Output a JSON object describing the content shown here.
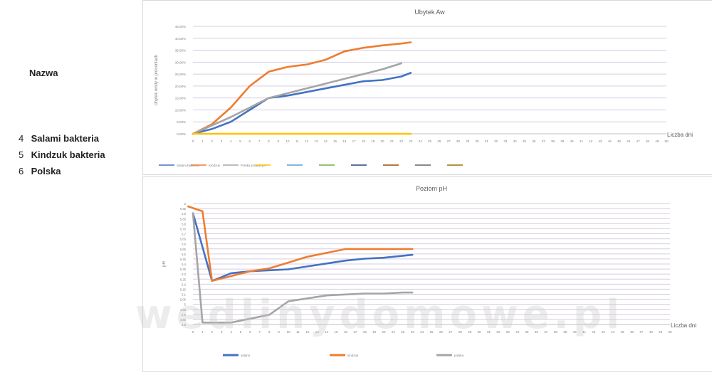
{
  "sidebar": {
    "title": "Nazwa",
    "items": [
      {
        "num": "4",
        "label": "Salami bakteria"
      },
      {
        "num": "5",
        "label": "Kindzuk bakteria"
      },
      {
        "num": "6",
        "label": "Polska"
      }
    ]
  },
  "watermark": "wedlinydomowe.pl",
  "chart_data": [
    {
      "type": "line",
      "title": "Ubytek Aw",
      "xlabel": "Liczba dni",
      "ylabel": "Ubytek wody w procentach",
      "x": [
        "0",
        "1",
        "2",
        "3",
        "4",
        "5",
        "6",
        "7",
        "8",
        "9",
        "10",
        "11",
        "12",
        "13",
        "14",
        "15",
        "16",
        "17",
        "18",
        "19",
        "20",
        "21",
        "22",
        "23",
        "24",
        "25",
        "26",
        "27",
        "28",
        "29",
        "30",
        "31",
        "32",
        "33",
        "34",
        "35",
        "36",
        "37",
        "38",
        "39",
        "40",
        "41",
        "42",
        "43",
        "44",
        "45",
        "46",
        "47",
        "48",
        "49",
        "50"
      ],
      "ylim": [
        0,
        45
      ],
      "yticks": [
        "0,00%",
        "5,00%",
        "10,00%",
        "15,00%",
        "20,00%",
        "25,00%",
        "30,00%",
        "35,00%",
        "40,00%",
        "45,00%"
      ],
      "series": [
        {
          "name": "Salami bakteria",
          "color": "#4472c4",
          "points": [
            [
              0,
              0
            ],
            [
              2,
              2
            ],
            [
              4,
              5
            ],
            [
              6,
              10
            ],
            [
              8,
              15
            ],
            [
              10,
              16
            ],
            [
              12,
              17.5
            ],
            [
              14,
              19
            ],
            [
              16,
              20.5
            ],
            [
              18,
              22
            ],
            [
              20,
              22.5
            ],
            [
              22,
              24
            ],
            [
              23,
              25.5
            ]
          ]
        },
        {
          "name": "Kindzuk",
          "color": "#ed7d31",
          "points": [
            [
              0,
              0
            ],
            [
              2,
              4
            ],
            [
              4,
              11
            ],
            [
              6,
              20
            ],
            [
              8,
              26
            ],
            [
              10,
              28
            ],
            [
              12,
              29
            ],
            [
              14,
              31
            ],
            [
              16,
              34.5
            ],
            [
              18,
              36
            ],
            [
              20,
              37
            ],
            [
              22,
              37.8
            ],
            [
              23,
              38.3
            ]
          ]
        },
        {
          "name": "Polska (szara)",
          "color": "#a5a5a5",
          "points": [
            [
              0,
              0
            ],
            [
              2,
              3.5
            ],
            [
              4,
              7
            ],
            [
              6,
              11
            ],
            [
              8,
              15
            ],
            [
              10,
              17
            ],
            [
              12,
              19
            ],
            [
              14,
              21
            ],
            [
              16,
              23
            ],
            [
              18,
              25
            ],
            [
              20,
              27
            ],
            [
              22,
              29.5
            ]
          ]
        },
        {
          "name": "",
          "color": "#ffc000",
          "points": [
            [
              0,
              0
            ],
            [
              23,
              0
            ]
          ]
        }
      ],
      "legend": [
        {
          "label": "Salami bakteria",
          "color": "#4472c4"
        },
        {
          "label": "Kindzuk",
          "color": "#ed7d31"
        },
        {
          "label": "Polska (szara) pH",
          "color": "#a5a5a5"
        },
        {
          "label": "",
          "color": "#ffc000"
        },
        {
          "label": "",
          "color": "#5b9bd5"
        },
        {
          "label": "",
          "color": "#70ad47"
        },
        {
          "label": "",
          "color": "#264478"
        },
        {
          "label": "",
          "color": "#9e480e"
        },
        {
          "label": "",
          "color": "#636363"
        },
        {
          "label": "",
          "color": "#997300"
        }
      ]
    },
    {
      "type": "line",
      "title": "Poziom pH",
      "xlabel": "Liczba dni",
      "ylabel": "pH",
      "x": [
        "0",
        "1",
        "2",
        "3",
        "4",
        "5",
        "6",
        "7",
        "8",
        "9",
        "10",
        "11",
        "12",
        "13",
        "14",
        "15",
        "16",
        "17",
        "18",
        "19",
        "20",
        "21",
        "22",
        "23",
        "24",
        "25",
        "26",
        "27",
        "28",
        "29",
        "30",
        "31",
        "32",
        "33",
        "34",
        "35",
        "36",
        "37",
        "38",
        "39",
        "40",
        "41",
        "42",
        "43",
        "44",
        "45",
        "46",
        "47",
        "48",
        "49",
        "50"
      ],
      "ylim": [
        4.8,
        6.05
      ],
      "yticks": [
        "4,8",
        "4,85",
        "4,9",
        "4,95",
        "5",
        "5,05",
        "5,1",
        "5,15",
        "5,2",
        "5,25",
        "5,3",
        "5,35",
        "5,4",
        "5,45",
        "5,5",
        "5,55",
        "5,6",
        "5,65",
        "5,7",
        "5,75",
        "5,8",
        "5,85",
        "5,9",
        "5,95",
        "6"
      ],
      "series": [
        {
          "name": "salami",
          "color": "#4472c4",
          "points": [
            [
              0,
              5.95
            ],
            [
              1,
              5.6
            ],
            [
              2,
              5.25
            ],
            [
              4,
              5.33
            ],
            [
              6,
              5.35
            ],
            [
              8,
              5.36
            ],
            [
              10,
              5.37
            ],
            [
              12,
              5.4
            ],
            [
              14,
              5.43
            ],
            [
              16,
              5.46
            ],
            [
              18,
              5.48
            ],
            [
              20,
              5.49
            ],
            [
              22,
              5.51
            ],
            [
              23,
              5.52
            ]
          ]
        },
        {
          "name": "kindzuk",
          "color": "#ed7d31",
          "points": [
            [
              -0.5,
              6.02
            ],
            [
              1,
              5.97
            ],
            [
              2,
              5.25
            ],
            [
              4,
              5.3
            ],
            [
              6,
              5.35
            ],
            [
              8,
              5.38
            ],
            [
              10,
              5.44
            ],
            [
              12,
              5.5
            ],
            [
              14,
              5.54
            ],
            [
              16,
              5.58
            ],
            [
              18,
              5.58
            ],
            [
              20,
              5.58
            ],
            [
              22,
              5.58
            ],
            [
              23,
              5.58
            ]
          ]
        },
        {
          "name": "polska",
          "color": "#a5a5a5",
          "points": [
            [
              0,
              5.95
            ],
            [
              1,
              4.82
            ],
            [
              2,
              4.82
            ],
            [
              4,
              4.82
            ],
            [
              6,
              4.86
            ],
            [
              8,
              4.9
            ],
            [
              10,
              5.04
            ],
            [
              12,
              5.07
            ],
            [
              14,
              5.1
            ],
            [
              16,
              5.11
            ],
            [
              18,
              5.12
            ],
            [
              20,
              5.12
            ],
            [
              22,
              5.13
            ],
            [
              23,
              5.13
            ]
          ]
        }
      ],
      "legend": [
        {
          "label": "salami",
          "color": "#4472c4"
        },
        {
          "label": "kindzuk",
          "color": "#ed7d31"
        },
        {
          "label": "polska",
          "color": "#a5a5a5"
        }
      ]
    }
  ]
}
